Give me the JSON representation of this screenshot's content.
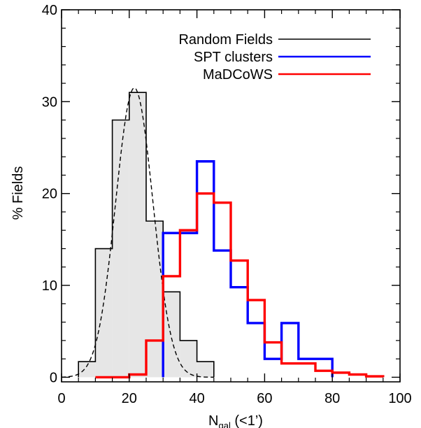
{
  "chart_data": {
    "type": "histogram",
    "xlabel_main": "N",
    "xlabel_sub": "gal",
    "xlabel_rest": " (<1’)",
    "ylabel": "% Fields",
    "xlim": [
      0,
      100
    ],
    "ylim": [
      -0.5,
      40
    ],
    "xticks": [
      0,
      20,
      40,
      60,
      80,
      100
    ],
    "yticks": [
      0,
      10,
      20,
      30,
      40
    ],
    "legend_position": "top-right",
    "series": [
      {
        "name": "Random Fields",
        "color": "#000000",
        "fill": "#e6e6e6",
        "dashed_fit": true,
        "bin_edges": [
          5,
          10,
          15,
          20,
          25,
          30,
          35,
          40,
          45
        ],
        "values": [
          1.7,
          14.0,
          28.0,
          31.0,
          17.0,
          9.3,
          4.0,
          1.7
        ]
      },
      {
        "name": "SPT clusters",
        "color": "#0000ff",
        "bin_edges": [
          30,
          35,
          40,
          45,
          50,
          55,
          60,
          65,
          70,
          75,
          80
        ],
        "values": [
          15.7,
          15.7,
          23.5,
          13.8,
          9.8,
          5.9,
          2.0,
          5.9,
          2.0,
          2.0
        ]
      },
      {
        "name": "MaDCoWS",
        "color": "#ff0000",
        "bin_edges": [
          10,
          15,
          20,
          25,
          30,
          35,
          40,
          45,
          50,
          55,
          60,
          65,
          70,
          75,
          80,
          85,
          90,
          95
        ],
        "values": [
          0.0,
          0.0,
          0.3,
          4.0,
          11.0,
          16.0,
          20.0,
          19.0,
          12.7,
          8.4,
          3.8,
          1.5,
          1.5,
          0.7,
          0.5,
          0.3,
          0.1
        ]
      }
    ],
    "fit": {
      "mean": 21.5,
      "sigma": 5.5,
      "peak": 31.5
    }
  }
}
